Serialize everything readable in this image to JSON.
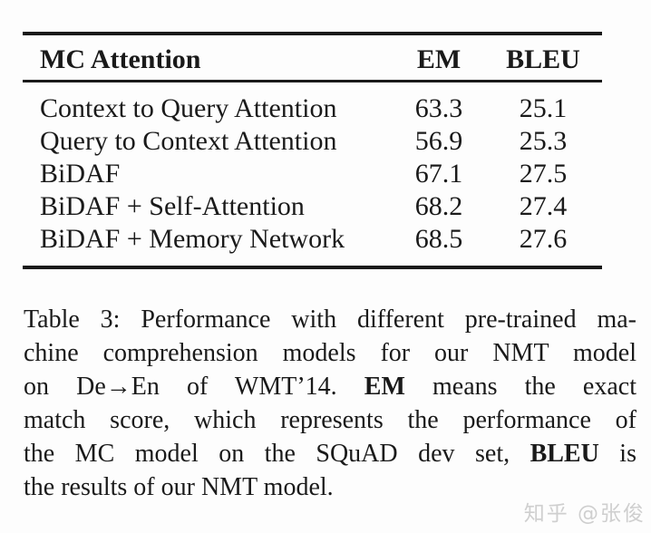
{
  "table": {
    "header": {
      "model": "MC Attention",
      "em": "EM",
      "bleu": "BLEU"
    },
    "rows": [
      {
        "model": "Context to Query Attention",
        "em": "63.3",
        "bleu": "25.1"
      },
      {
        "model": "Query to Context Attention",
        "em": "56.9",
        "bleu": "25.3"
      },
      {
        "model": "BiDAF",
        "em": "67.1",
        "bleu": "27.5"
      },
      {
        "model": "BiDAF + Self-Attention",
        "em": "68.2",
        "bleu": "27.4"
      },
      {
        "model": "BiDAF + Memory Network",
        "em": "68.5",
        "bleu": "27.6"
      }
    ]
  },
  "caption": {
    "lines": [
      {
        "pre": "Table 3: Performance with different pre-trained ma-"
      },
      {
        "pre": "chine comprehension models for our NMT model"
      },
      {
        "pre": "on De→En of WMT’14. ",
        "bold": "EM",
        "post": " means the exact"
      },
      {
        "pre": "match score, which represents the performance of"
      },
      {
        "pre": "the MC model on the SQuAD dev set, ",
        "bold": "BLEU",
        "post": " is"
      },
      {
        "pre": "the results of our NMT model."
      }
    ]
  },
  "watermark": {
    "text": "知乎 @张俊",
    "color": "#cfcfcf"
  },
  "colors": {
    "text": "#1a1a1a",
    "background": "#fdfdfd",
    "rule": "#1a1a1a"
  }
}
